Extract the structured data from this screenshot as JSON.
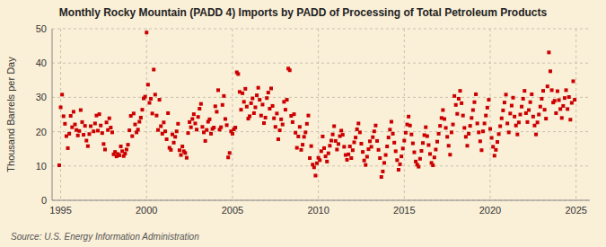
{
  "chart_data": {
    "type": "scatter",
    "title": "Monthly Rocky Mountain (PADD 4) Imports by PADD of Processing of Total Petroleum Products",
    "y_label": "Thousand Barrels per Day",
    "source": "Source: U.S. Energy Information Administration",
    "color": "#cc0000",
    "marker": "square",
    "grid": true,
    "xlim": [
      1994.5,
      2025.8
    ],
    "ylim": [
      0,
      50
    ],
    "xticks": [
      1995,
      2000,
      2005,
      2010,
      2015,
      2020,
      2025
    ],
    "yticks": [
      0,
      10,
      20,
      30,
      40,
      50
    ],
    "x": [
      1994.917,
      1995.0,
      1995.083,
      1995.167,
      1995.25,
      1995.333,
      1995.417,
      1995.5,
      1995.583,
      1995.667,
      1995.75,
      1995.833,
      1995.917,
      1996.0,
      1996.083,
      1996.167,
      1996.25,
      1996.333,
      1996.417,
      1996.5,
      1996.583,
      1996.667,
      1996.75,
      1996.917,
      1997.0,
      1997.083,
      1997.167,
      1997.25,
      1997.333,
      1997.417,
      1997.5,
      1997.583,
      1997.667,
      1997.75,
      1997.833,
      1997.917,
      1998.0,
      1998.083,
      1998.167,
      1998.25,
      1998.333,
      1998.417,
      1998.5,
      1998.583,
      1998.667,
      1998.75,
      1998.833,
      1998.917,
      1999.0,
      1999.083,
      1999.167,
      1999.25,
      1999.333,
      1999.417,
      1999.5,
      1999.583,
      1999.667,
      1999.75,
      1999.833,
      1999.917,
      2000.0,
      2000.083,
      2000.167,
      2000.25,
      2000.333,
      2000.417,
      2000.5,
      2000.583,
      2000.667,
      2000.75,
      2000.833,
      2000.917,
      2001.0,
      2001.083,
      2001.167,
      2001.25,
      2001.333,
      2001.417,
      2001.5,
      2001.583,
      2001.667,
      2001.75,
      2001.833,
      2001.917,
      2002.0,
      2002.083,
      2002.167,
      2002.25,
      2002.333,
      2002.417,
      2002.5,
      2002.583,
      2002.667,
      2002.75,
      2002.833,
      2002.917,
      2003.0,
      2003.083,
      2003.167,
      2003.25,
      2003.333,
      2003.417,
      2003.5,
      2003.583,
      2003.667,
      2003.75,
      2003.833,
      2003.917,
      2004.0,
      2004.083,
      2004.167,
      2004.25,
      2004.333,
      2004.417,
      2004.5,
      2004.583,
      2004.667,
      2004.75,
      2004.833,
      2004.917,
      2005.0,
      2005.083,
      2005.167,
      2005.25,
      2005.333,
      2005.417,
      2005.5,
      2005.583,
      2005.667,
      2005.75,
      2005.833,
      2005.917,
      2006.0,
      2006.083,
      2006.167,
      2006.25,
      2006.333,
      2006.417,
      2006.5,
      2006.583,
      2006.667,
      2006.75,
      2006.833,
      2006.917,
      2007.0,
      2007.083,
      2007.167,
      2007.25,
      2007.333,
      2007.417,
      2007.5,
      2007.583,
      2007.667,
      2007.75,
      2007.833,
      2007.917,
      2008.0,
      2008.083,
      2008.167,
      2008.25,
      2008.333,
      2008.417,
      2008.5,
      2008.583,
      2008.667,
      2008.75,
      2008.833,
      2008.917,
      2009.0,
      2009.083,
      2009.167,
      2009.25,
      2009.333,
      2009.417,
      2009.5,
      2009.583,
      2009.667,
      2009.75,
      2009.833,
      2009.917,
      2010.0,
      2010.083,
      2010.167,
      2010.25,
      2010.333,
      2010.417,
      2010.5,
      2010.583,
      2010.667,
      2010.75,
      2010.833,
      2010.917,
      2011.0,
      2011.083,
      2011.167,
      2011.25,
      2011.333,
      2011.417,
      2011.5,
      2011.583,
      2011.667,
      2011.75,
      2011.833,
      2011.917,
      2012.0,
      2012.083,
      2012.167,
      2012.25,
      2012.333,
      2012.417,
      2012.5,
      2012.583,
      2012.667,
      2012.75,
      2012.833,
      2012.917,
      2013.0,
      2013.083,
      2013.167,
      2013.25,
      2013.333,
      2013.417,
      2013.5,
      2013.583,
      2013.667,
      2013.75,
      2013.833,
      2013.917,
      2014.0,
      2014.083,
      2014.167,
      2014.25,
      2014.333,
      2014.417,
      2014.5,
      2014.583,
      2014.667,
      2014.75,
      2014.833,
      2014.917,
      2015.0,
      2015.083,
      2015.167,
      2015.25,
      2015.333,
      2015.417,
      2015.5,
      2015.583,
      2015.667,
      2015.75,
      2015.833,
      2015.917,
      2016.0,
      2016.083,
      2016.167,
      2016.25,
      2016.333,
      2016.417,
      2016.5,
      2016.583,
      2016.667,
      2016.75,
      2016.833,
      2016.917,
      2017.0,
      2017.083,
      2017.167,
      2017.25,
      2017.333,
      2017.417,
      2017.5,
      2017.583,
      2017.667,
      2017.75,
      2017.833,
      2017.917,
      2018.0,
      2018.083,
      2018.167,
      2018.25,
      2018.333,
      2018.417,
      2018.5,
      2018.583,
      2018.667,
      2018.75,
      2018.833,
      2018.917,
      2019.0,
      2019.083,
      2019.167,
      2019.25,
      2019.333,
      2019.417,
      2019.5,
      2019.583,
      2019.667,
      2019.75,
      2019.833,
      2019.917,
      2020.0,
      2020.083,
      2020.167,
      2020.25,
      2020.333,
      2020.417,
      2020.5,
      2020.583,
      2020.667,
      2020.75,
      2020.833,
      2020.917,
      2021.0,
      2021.083,
      2021.167,
      2021.25,
      2021.333,
      2021.417,
      2021.5,
      2021.583,
      2021.667,
      2021.75,
      2021.833,
      2021.917,
      2022.0,
      2022.083,
      2022.167,
      2022.25,
      2022.333,
      2022.417,
      2022.5,
      2022.583,
      2022.667,
      2022.75,
      2022.833,
      2022.917,
      2023.0,
      2023.083,
      2023.167,
      2023.25,
      2023.333,
      2023.417,
      2023.5,
      2023.583,
      2023.667,
      2023.75,
      2023.833,
      2023.917,
      2024.0,
      2024.083,
      2024.167,
      2024.25,
      2024.333,
      2024.417,
      2024.5,
      2024.583,
      2024.667,
      2024.75,
      2024.833,
      2024.917
    ],
    "values": [
      10.2,
      27.1,
      30.8,
      24.5,
      22.3,
      18.7,
      15.2,
      19.4,
      24.6,
      21.3,
      25.8,
      22.1,
      20.5,
      18.9,
      20.2,
      26.3,
      22.8,
      19.1,
      21.7,
      17.4,
      15.8,
      19.3,
      21.6,
      20.1,
      22.4,
      24.7,
      20.3,
      25.1,
      21.8,
      19.6,
      16.4,
      14.8,
      22.7,
      20.5,
      23.9,
      21.2,
      19.8,
      13.4,
      14.1,
      12.8,
      13.5,
      13.1,
      15.7,
      14.3,
      12.9,
      13.6,
      14.8,
      16.2,
      20.4,
      24.6,
      18.7,
      25.3,
      22.1,
      19.8,
      20.6,
      22.9,
      24.1,
      26.4,
      29.7,
      30.2,
      48.9,
      33.7,
      28.4,
      29.6,
      25.3,
      38.1,
      30.8,
      24.7,
      20.5,
      29.3,
      21.6,
      19.4,
      22.7,
      20.1,
      17.8,
      25.4,
      15.3,
      14.7,
      19.2,
      16.8,
      18.5,
      20.1,
      22.3,
      14.6,
      13.2,
      15.7,
      14.3,
      13.8,
      12.4,
      19.6,
      22.8,
      21.3,
      23.7,
      25.1,
      22.4,
      20.6,
      24.3,
      26.7,
      28.1,
      21.4,
      19.8,
      17.3,
      20.5,
      22.9,
      23.6,
      19.4,
      20.8,
      21.2,
      27.4,
      25.8,
      32.1,
      20.6,
      21.3,
      27.8,
      30.4,
      23.7,
      21.9,
      12.5,
      13.8,
      20.1,
      19.4,
      20.7,
      21.2,
      37.3,
      36.8,
      31.6,
      26.4,
      31.2,
      28.7,
      32.5,
      27.3,
      23.8,
      24.5,
      28.3,
      29.7,
      25.4,
      27.1,
      30.6,
      32.8,
      29.3,
      24.7,
      27.9,
      22.5,
      24.1,
      29.8,
      31.4,
      26.7,
      32.6,
      27.5,
      23.9,
      21.4,
      25.3,
      17.8,
      20.4,
      23.6,
      22.1,
      28.7,
      26.4,
      29.3,
      38.4,
      37.9,
      24.6,
      22.8,
      25.1,
      19.7,
      15.3,
      18.6,
      21.4,
      14.7,
      16.2,
      18.5,
      19.8,
      22.3,
      24.7,
      12.3,
      15.8,
      10.4,
      9.6,
      7.2,
      10.8,
      12.4,
      11.7,
      14.3,
      18.6,
      15.2,
      12.8,
      11.3,
      13.7,
      15.9,
      17.4,
      19.2,
      21.6,
      17.3,
      14.8,
      16.4,
      18.7,
      20.3,
      19.1,
      15.6,
      13.2,
      11.8,
      13.4,
      15.7,
      12.3,
      14.6,
      16.9,
      18.3,
      20.7,
      22.4,
      19.8,
      16.5,
      14.1,
      11.6,
      10.3,
      12.7,
      14.9,
      17.2,
      15.6,
      18.4,
      20.1,
      21.8,
      17.3,
      14.7,
      12.3,
      6.8,
      8.4,
      10.9,
      13.2,
      15.7,
      18.3,
      20.6,
      22.9,
      19.4,
      16.8,
      14.3,
      11.7,
      8.9,
      10.5,
      12.8,
      15.1,
      17.4,
      19.7,
      22.1,
      24.4,
      21.8,
      19.2,
      16.6,
      14.0,
      11.3,
      10.4,
      9.8,
      12.1,
      14.4,
      16.7,
      19.0,
      21.3,
      18.7,
      16.1,
      13.5,
      10.9,
      10.2,
      12.5,
      14.8,
      17.1,
      19.4,
      21.7,
      24.0,
      26.3,
      23.7,
      21.1,
      18.5,
      15.9,
      13.3,
      19.8,
      22.1,
      30.4,
      27.8,
      25.2,
      29.6,
      31.9,
      28.3,
      24.7,
      21.1,
      18.5,
      15.9,
      19.4,
      21.7,
      24.0,
      26.3,
      28.6,
      30.9,
      22.4,
      19.8,
      17.2,
      14.6,
      20.1,
      22.4,
      24.7,
      27.0,
      29.3,
      20.8,
      18.2,
      15.6,
      13.0,
      14.7,
      17.0,
      19.3,
      21.6,
      23.9,
      26.2,
      28.5,
      30.8,
      22.4,
      19.8,
      25.3,
      27.6,
      29.9,
      24.4,
      21.8,
      19.2,
      22.7,
      25.0,
      27.3,
      29.6,
      31.9,
      25.4,
      22.8,
      26.3,
      28.6,
      30.9,
      24.4,
      21.8,
      19.2,
      22.7,
      25.0,
      27.3,
      29.6,
      31.9,
      26.4,
      23.8,
      33.2,
      43.1,
      37.6,
      32.1,
      28.5,
      29.0,
      25.4,
      31.8,
      29.2,
      26.6,
      24.0,
      27.5,
      29.8,
      32.1,
      26.6,
      30.1,
      23.5,
      28.4,
      34.7,
      29.3
    ]
  }
}
